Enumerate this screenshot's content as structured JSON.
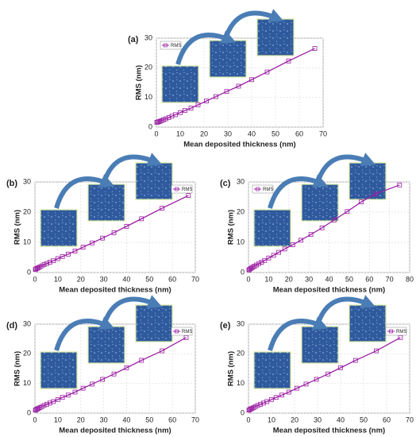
{
  "chart_data": [
    {
      "type": "line",
      "panel_label": "(a)",
      "x_label": "Mean deposited thickness (nm)",
      "y_label": "RMS (nm)",
      "x": [
        0.2,
        0.5,
        1,
        1.5,
        2.2,
        3,
        4,
        5.2,
        6.5,
        8,
        10,
        12,
        14.5,
        17.5,
        21,
        25,
        29.5,
        34.5,
        40,
        46.5,
        55.5,
        66.5
      ],
      "series": [
        {
          "name": "RMS",
          "color": "#9b1fa3",
          "values": [
            1.6,
            1.7,
            1.8,
            2.0,
            2.2,
            2.5,
            2.8,
            3.2,
            3.7,
            4.2,
            4.9,
            5.6,
            6.4,
            7.5,
            8.8,
            10.3,
            12.0,
            13.8,
            16.0,
            18.6,
            22.3,
            26.5
          ]
        }
      ],
      "xlim": [
        0,
        70
      ],
      "xticks": [
        0,
        10,
        20,
        30,
        40,
        50,
        60,
        70
      ],
      "ylim": [
        0,
        30
      ],
      "yticks": [
        0,
        10,
        20,
        30
      ],
      "grid": true,
      "legend": "upper left"
    },
    {
      "type": "line",
      "panel_label": "(b)",
      "x_label": "Mean deposited thickness (nm)",
      "y_label": "RMS (nm)",
      "x": [
        0.2,
        0.5,
        1,
        1.5,
        2.2,
        3,
        4,
        5.2,
        6.5,
        8,
        10,
        12,
        14.5,
        17.5,
        21,
        25,
        29.5,
        34.5,
        40,
        46.5,
        55.5,
        67
      ],
      "series": [
        {
          "name": "RMS",
          "color": "#9b1fa3",
          "values": [
            1.0,
            1.2,
            1.4,
            1.6,
            1.9,
            2.2,
            2.6,
            3.0,
            3.4,
            3.9,
            4.6,
            5.3,
            6.1,
            7.1,
            8.4,
            9.8,
            11.4,
            13.2,
            15.3,
            17.8,
            21.3,
            25.5
          ]
        }
      ],
      "xlim": [
        0,
        70
      ],
      "xticks": [
        0,
        10,
        20,
        30,
        40,
        50,
        60,
        70
      ],
      "ylim": [
        0,
        30
      ],
      "yticks": [
        0,
        10,
        20,
        30
      ],
      "grid": true,
      "legend": "upper right"
    },
    {
      "type": "line",
      "panel_label": "(c)",
      "x_label": "Mean deposited thickness (nm)",
      "y_label": "RMS (nm)",
      "x": [
        0.2,
        0.5,
        1,
        1.5,
        2.2,
        3,
        4,
        5.2,
        6.5,
        8,
        10,
        12.5,
        15,
        18,
        22,
        26,
        31,
        36.5,
        42.5,
        49,
        56,
        63,
        75
      ],
      "series": [
        {
          "name": "RMS",
          "color": "#9b1fa3",
          "values": [
            0.8,
            1.0,
            1.3,
            1.5,
            1.8,
            2.1,
            2.5,
            3.0,
            3.4,
            4.0,
            4.8,
            5.7,
            6.7,
            7.8,
            9.2,
            10.7,
            12.6,
            14.8,
            17.4,
            20.2,
            23.4,
            26.0,
            29.0
          ]
        }
      ],
      "xlim": [
        0,
        80
      ],
      "xticks": [
        0,
        10,
        20,
        30,
        40,
        50,
        60,
        70,
        80
      ],
      "ylim": [
        0,
        30
      ],
      "yticks": [
        0,
        10,
        20,
        30
      ],
      "grid": true,
      "legend": "upper left"
    },
    {
      "type": "line",
      "panel_label": "(d)",
      "x_label": "Mean deposited thickness (nm)",
      "y_label": "RMS (nm)",
      "x": [
        0.2,
        0.5,
        1,
        1.5,
        2.2,
        3,
        4,
        5.2,
        6.5,
        8,
        10,
        12,
        14.5,
        17.5,
        21,
        25,
        29.5,
        34.5,
        40,
        46.5,
        55.5,
        66
      ],
      "series": [
        {
          "name": "RMS",
          "color": "#9b1fa3",
          "values": [
            1.0,
            1.2,
            1.4,
            1.6,
            1.9,
            2.2,
            2.6,
            3.0,
            3.4,
            3.9,
            4.6,
            5.3,
            6.1,
            7.1,
            8.4,
            9.8,
            11.4,
            13.2,
            15.3,
            17.8,
            21.0,
            25.5
          ]
        }
      ],
      "xlim": [
        0,
        70
      ],
      "xticks": [
        0,
        10,
        20,
        30,
        40,
        50,
        60,
        70
      ],
      "ylim": [
        0,
        30
      ],
      "yticks": [
        0,
        10,
        20,
        30
      ],
      "grid": true,
      "legend": "upper right"
    },
    {
      "type": "line",
      "panel_label": "(e)",
      "x_label": "Mean deposited thickness (nm)",
      "y_label": "RMS (nm)",
      "x": [
        0.2,
        0.5,
        1,
        1.5,
        2.2,
        3,
        4,
        5.2,
        6.5,
        8,
        10,
        12,
        14.5,
        17.5,
        21,
        25,
        29.5,
        34.5,
        40,
        46.5,
        55.5,
        66
      ],
      "series": [
        {
          "name": "RMS",
          "color": "#9b1fa3",
          "values": [
            1.0,
            1.2,
            1.4,
            1.6,
            1.9,
            2.2,
            2.6,
            3.0,
            3.4,
            3.9,
            4.6,
            5.3,
            6.1,
            7.1,
            8.4,
            9.8,
            11.4,
            13.2,
            15.3,
            17.8,
            21.0,
            25.5
          ]
        }
      ],
      "xlim": [
        0,
        70
      ],
      "xticks": [
        0,
        10,
        20,
        30,
        40,
        50,
        60,
        70
      ],
      "ylim": [
        0,
        30
      ],
      "yticks": [
        0,
        10,
        20,
        30
      ],
      "grid": true,
      "legend": "upper right"
    }
  ]
}
